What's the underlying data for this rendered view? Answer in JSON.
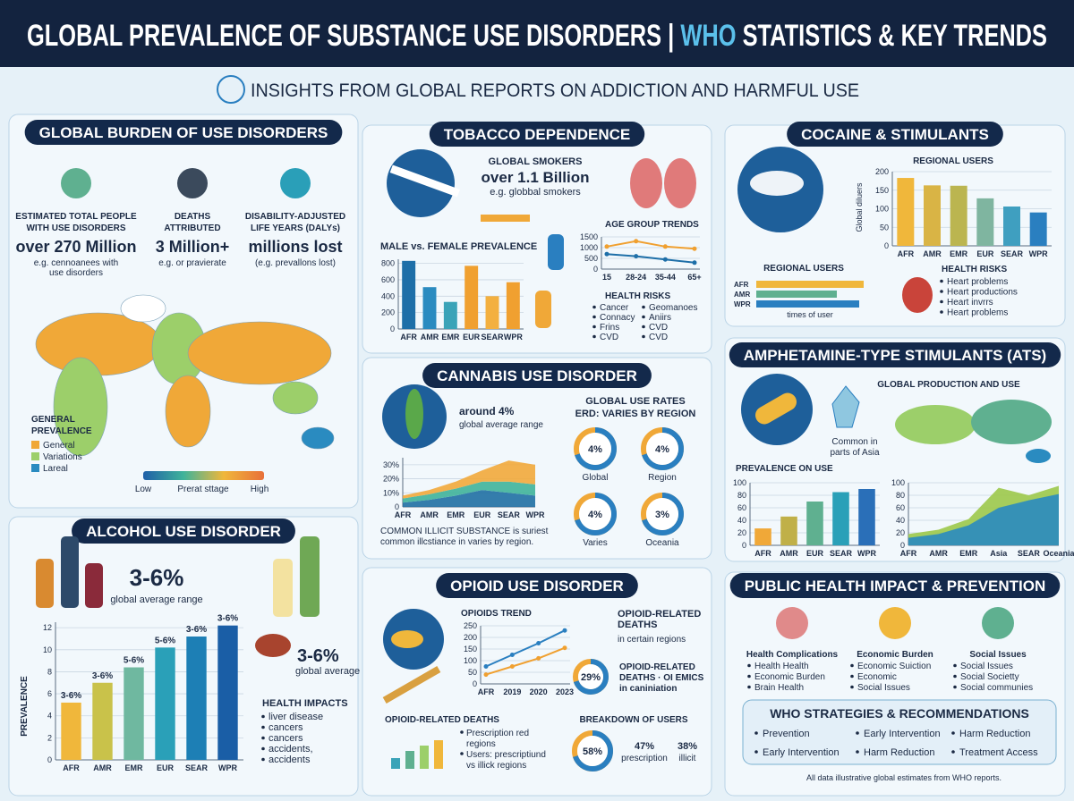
{
  "header": {
    "title": "GLOBAL PREVALENCE OF SUBSTANCE USE DISORDERS",
    "separator": "|",
    "title_highlight": "WHO",
    "title_end": "STATISTICS & KEY TRENDS",
    "subtitle": "INSIGHTS FROM GLOBAL REPORTS ON ADDICTION AND HARMFUL USE"
  },
  "burden": {
    "title": "GLOBAL BURDEN OF USE DISORDERS",
    "stats": [
      {
        "label": [
          "ESTIMATED TOTAL PEOPLE",
          "WITH USE DISORDERS"
        ],
        "value": "over 270 Million",
        "note": [
          "e.g. cennoanees with",
          "use disorders"
        ]
      },
      {
        "label": [
          "DEATHS",
          "ATTRIBUTED"
        ],
        "value": "3 Million+",
        "note": [
          "e.g. or pravierate"
        ]
      },
      {
        "label": [
          "DISABILITY-ADJUSTED",
          "LIFE YEARS (DALYs)"
        ],
        "value": "millions lost",
        "note": [
          "(e.g. prevallons lost)"
        ]
      }
    ],
    "legend_title": [
      "GENERAL",
      "PREVALENCE"
    ],
    "legend": [
      "General",
      "Variations",
      "Lareal"
    ],
    "legend_colors": [
      "#f0a838",
      "#9ccf6a",
      "#2a8bc0"
    ],
    "scale": [
      "Low",
      "Prerat sttage",
      "High"
    ]
  },
  "alcohol": {
    "title": "ALCOHOL USE DISORDER",
    "range": "3-6%",
    "range_note": "global average range",
    "chart": {
      "type": "bar",
      "y_label": "PREVALENCE",
      "categories": [
        "AFR",
        "AMR",
        "EMR",
        "EUR",
        "SEAR",
        "WPR"
      ],
      "values": [
        5.2,
        7.0,
        8.4,
        10.2,
        11.2,
        12.2
      ],
      "bar_notes": [
        "3-6%",
        "3-6%",
        "5-6%",
        "5-6%",
        "3-6%",
        "3-6%"
      ],
      "colors": [
        "#f0b73b",
        "#c9c24a",
        "#6fb8a0",
        "#2aa0b8",
        "#1d7fb5",
        "#1a5ea6"
      ],
      "ylim": [
        0,
        12.5
      ],
      "yticks": [
        0,
        2,
        4,
        6,
        8,
        10,
        12
      ]
    },
    "liver_value": "3-6%",
    "liver_note": "global average",
    "impacts_title": "HEALTH IMPACTS",
    "impacts": [
      "liver disease",
      "cancers",
      "cancers",
      "accidents,",
      "accidents"
    ]
  },
  "tobacco": {
    "title": "TOBACCO DEPENDENCE",
    "smokers_title": "GLOBAL SMOKERS",
    "smokers_value": "over 1.1 Billion",
    "smokers_note": "e.g. globbal smokers",
    "chart": {
      "type": "bar",
      "title": "MALE vs. FEMALE PREVALENCE",
      "categories": [
        "AFR",
        "AMR",
        "EMR",
        "EUR",
        "SEAR",
        "WPR"
      ],
      "values": [
        830,
        510,
        330,
        770,
        400,
        570
      ],
      "colors": [
        "#1e6fa8",
        "#2a8bc0",
        "#3aa3b8",
        "#f0a030",
        "#f3b040",
        "#f0a030"
      ],
      "ylim": [
        0,
        850
      ],
      "yticks": [
        0,
        200,
        400,
        600,
        800
      ]
    },
    "age_chart": {
      "type": "line",
      "title": "AGE GROUP TRENDS",
      "categories": [
        "15",
        "28-24",
        "35-44",
        "65+"
      ],
      "series": [
        {
          "color": "#f0a030",
          "values": [
            1050,
            1300,
            1050,
            950
          ]
        },
        {
          "color": "#1e6fa8",
          "values": [
            700,
            600,
            450,
            300
          ]
        }
      ],
      "ylim": [
        0,
        1500
      ],
      "yticks": [
        0,
        500,
        1000,
        1500
      ]
    },
    "risks_title": "HEALTH RISKS",
    "risks_1": [
      "Cancer",
      "Connacy",
      "Frins",
      "CVD"
    ],
    "risks_2": [
      "Geomanoes",
      "Aniirs",
      "CVD",
      "CVD"
    ]
  },
  "cannabis": {
    "title": "CANNABIS USE DISORDER",
    "value": "around 4%",
    "value_note": "global average range",
    "chart": {
      "type": "area",
      "stacked": true,
      "categories": [
        "AFR",
        "AMR",
        "EMR",
        "EUR",
        "SEAR",
        "WPR"
      ],
      "series": [
        {
          "color": "#1f6fa3",
          "values": [
            3,
            5,
            8,
            12,
            10,
            8
          ]
        },
        {
          "color": "#3fb39a",
          "values": [
            3,
            4,
            5,
            6,
            8,
            8
          ]
        },
        {
          "color": "#f2a93b",
          "values": [
            2,
            3,
            5,
            8,
            15,
            14
          ]
        }
      ],
      "ylim": [
        0,
        35
      ],
      "yticks": [
        0,
        {
          "value": 10,
          "label": "10%"
        },
        {
          "value": 20,
          "label": "20%"
        },
        {
          "value": 30,
          "label": "30%"
        }
      ]
    },
    "note": [
      "COMMON ILLICIT SUBSTANCE is suriest",
      "common illcstiance in varies by region."
    ],
    "rates_title": "GLOBAL USE RATES",
    "rates_subtitle": "ERD: VARIES BY REGION",
    "rates": [
      {
        "value": "4%",
        "name": "Global"
      },
      {
        "value": "4%",
        "name": "Region"
      },
      {
        "value": "4%",
        "name": "Varies"
      },
      {
        "value": "3%",
        "name": "Oceania"
      }
    ]
  },
  "opioid": {
    "title": "OPIOID USE DISORDER",
    "trend": {
      "type": "line",
      "title": "OPIOIDS TREND",
      "categories": [
        "AFR",
        "2019",
        "2020",
        "2023"
      ],
      "series": [
        {
          "color": "#2a7fc0",
          "values": [
            75,
            125,
            175,
            230
          ]
        },
        {
          "color": "#f0a030",
          "values": [
            40,
            75,
            110,
            155
          ]
        }
      ],
      "ylim": [
        0,
        250
      ],
      "yticks": [
        0,
        50,
        100,
        150,
        200,
        250
      ]
    },
    "deaths_title": [
      "OPIOID-RELATED",
      "DEATHS"
    ],
    "deaths_note": "in certain regions",
    "donut": "29%",
    "donut_text": [
      "OPIOID-RELATED",
      "DEATHS · OI EMICS",
      "in caniniation"
    ],
    "small_title": "OPIOID-RELATED DEATHS",
    "small_notes": [
      "Prescription red",
      "regions",
      "Users: prescriptiund",
      "vs illick regions"
    ],
    "breakdown_title": "BREAKDOWN OF USERS",
    "breakdown_donut": "58%",
    "prescription_value": "47%",
    "prescription": "prescription",
    "illicit_value": "38%",
    "illicit": "illicit"
  },
  "cocaine": {
    "title": "COCAINE & STIMULANTS",
    "chart": {
      "type": "bar",
      "title": "REGIONAL USERS",
      "y_label": "Global diluers",
      "categories": [
        "AFR",
        "AMR",
        "EMR",
        "EUR",
        "SEAR",
        "WPR"
      ],
      "values": [
        183,
        163,
        162,
        128,
        106,
        90
      ],
      "colors": [
        "#f0b73b",
        "#d9b445",
        "#bbb550",
        "#7fb5a0",
        "#3f9fc0",
        "#2a7fc0"
      ],
      "ylim": [
        0,
        200
      ],
      "yticks": [
        0,
        50,
        100,
        150,
        200
      ]
    },
    "hbar_title": "REGIONAL USERS",
    "hbar_categories": [
      "AFR",
      "AMR",
      "WPR"
    ],
    "hbar_note": "times of user",
    "risks_title": "HEALTH RISKS",
    "risks": [
      "Heart problems",
      "Heart productions",
      "Heart invrrs",
      "Heart problems"
    ]
  },
  "ats": {
    "title": "AMPHETAMINE-TYPE STIMULANTS (ATS)",
    "production_title": "GLOBAL PRODUCTION AND USE",
    "note": [
      "Common in",
      "parts of Asia"
    ],
    "prevalence_title": "PREVALENCE ON USE",
    "chart": {
      "type": "bar",
      "categories": [
        "AFR",
        "AMR",
        "EUR",
        "SEAR",
        "WPR"
      ],
      "values": [
        27,
        46,
        70,
        85,
        90
      ],
      "colors": [
        "#f0a838",
        "#c0b048",
        "#5fb090",
        "#2aa0b8",
        "#2a6fb8"
      ],
      "ylim": [
        0,
        100
      ],
      "yticks": [
        0,
        20,
        40,
        60,
        80,
        100
      ]
    },
    "area": {
      "type": "area",
      "stacked": false,
      "categories": [
        "AFR",
        "AMR",
        "EMR",
        "Asia",
        "SEAR",
        "Oceania"
      ],
      "series": [
        {
          "color": "#9cc84a",
          "values": [
            18,
            25,
            42,
            92,
            80,
            95
          ]
        },
        {
          "color": "#2a8bc0",
          "values": [
            12,
            18,
            32,
            60,
            72,
            82
          ]
        }
      ],
      "ylim": [
        0,
        100
      ],
      "yticks": [
        0,
        20,
        40,
        60,
        80,
        100
      ]
    }
  },
  "public_health": {
    "title": "PUBLIC HEALTH IMPACT & PREVENTION",
    "columns": [
      {
        "title": "Health Complications",
        "items": [
          "Health Health",
          "Economic Burden",
          "Brain Health"
        ]
      },
      {
        "title": "Economic Burden",
        "items": [
          "Economic Suiction",
          "Economic",
          "Social Issues"
        ]
      },
      {
        "title": "Social Issues",
        "items": [
          "Social Issues",
          "Social Societty",
          "Social communies"
        ]
      }
    ],
    "strategies_title": "WHO STRATEGIES & RECOMMENDATIONS",
    "strategies": [
      "Prevention",
      "Early Intervention",
      "Harm Reduction",
      "Early Intervention",
      "Harm Reduction",
      "Treatment Access"
    ],
    "footnote": "All data illustrative global estimates from WHO reports."
  }
}
